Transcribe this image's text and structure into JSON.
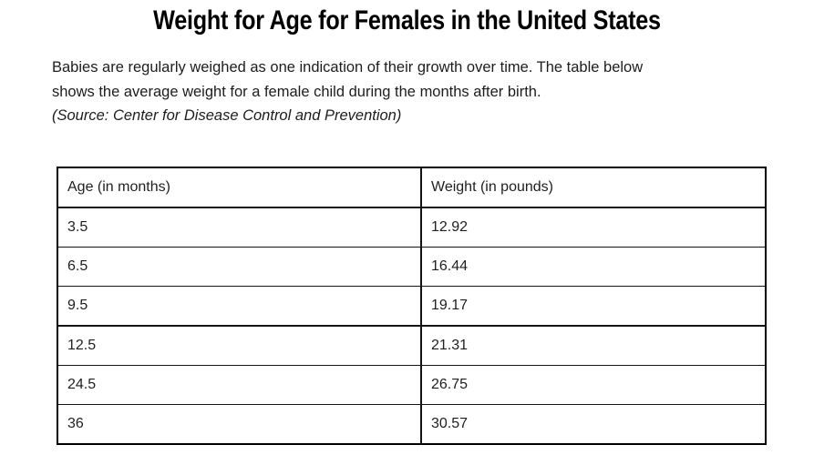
{
  "header": {
    "title": "Weight for Age for Females in the United States"
  },
  "intro": {
    "lines": [
      "Babies are regularly weighed as one indication of their growth over time. The table below",
      "shows the average weight for a female child during the months after birth."
    ],
    "source": "(Source: Center for Disease Control and Prevention)"
  },
  "chart_data": {
    "type": "table",
    "title": "Weight for Age for Females in the United States",
    "columns": [
      "Age (in months)",
      "Weight (in pounds)"
    ],
    "rows": [
      [
        "3.5",
        "12.92"
      ],
      [
        "6.5",
        "16.44"
      ],
      [
        "9.5",
        "19.17"
      ],
      [
        "12.5",
        "21.31"
      ],
      [
        "24.5",
        "26.75"
      ],
      [
        "36",
        "30.57"
      ]
    ]
  },
  "colors": {
    "background": "#ffffff",
    "text": "#1f1f1f",
    "border": "#000000"
  }
}
